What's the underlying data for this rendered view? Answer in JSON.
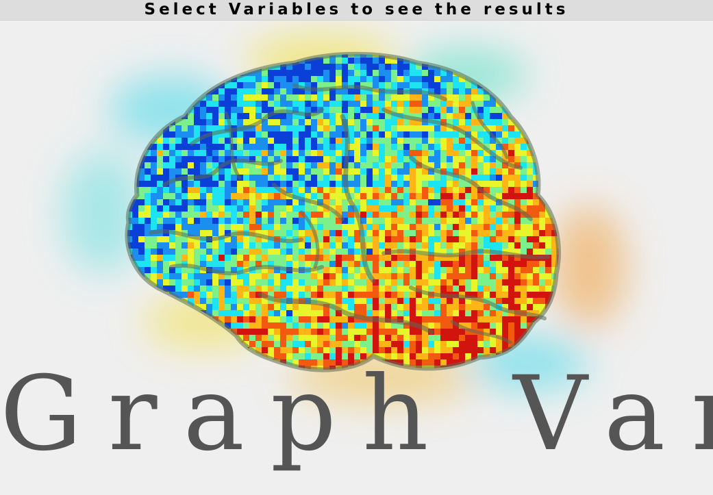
{
  "header": {
    "message": "Select Variables to see the results"
  },
  "splash": {
    "logo_text": "Graph Var",
    "logo_icon": "brain-connectivity-matrix-icon"
  },
  "colors": {
    "header_bg": "#dddddd",
    "background": "#efefef",
    "title_text": "#555555",
    "colormap": [
      "#0a3fd8",
      "#1a8ff0",
      "#1ee3f0",
      "#7cf08a",
      "#e8f52a",
      "#ffb515",
      "#f25a10",
      "#d2140f"
    ]
  }
}
